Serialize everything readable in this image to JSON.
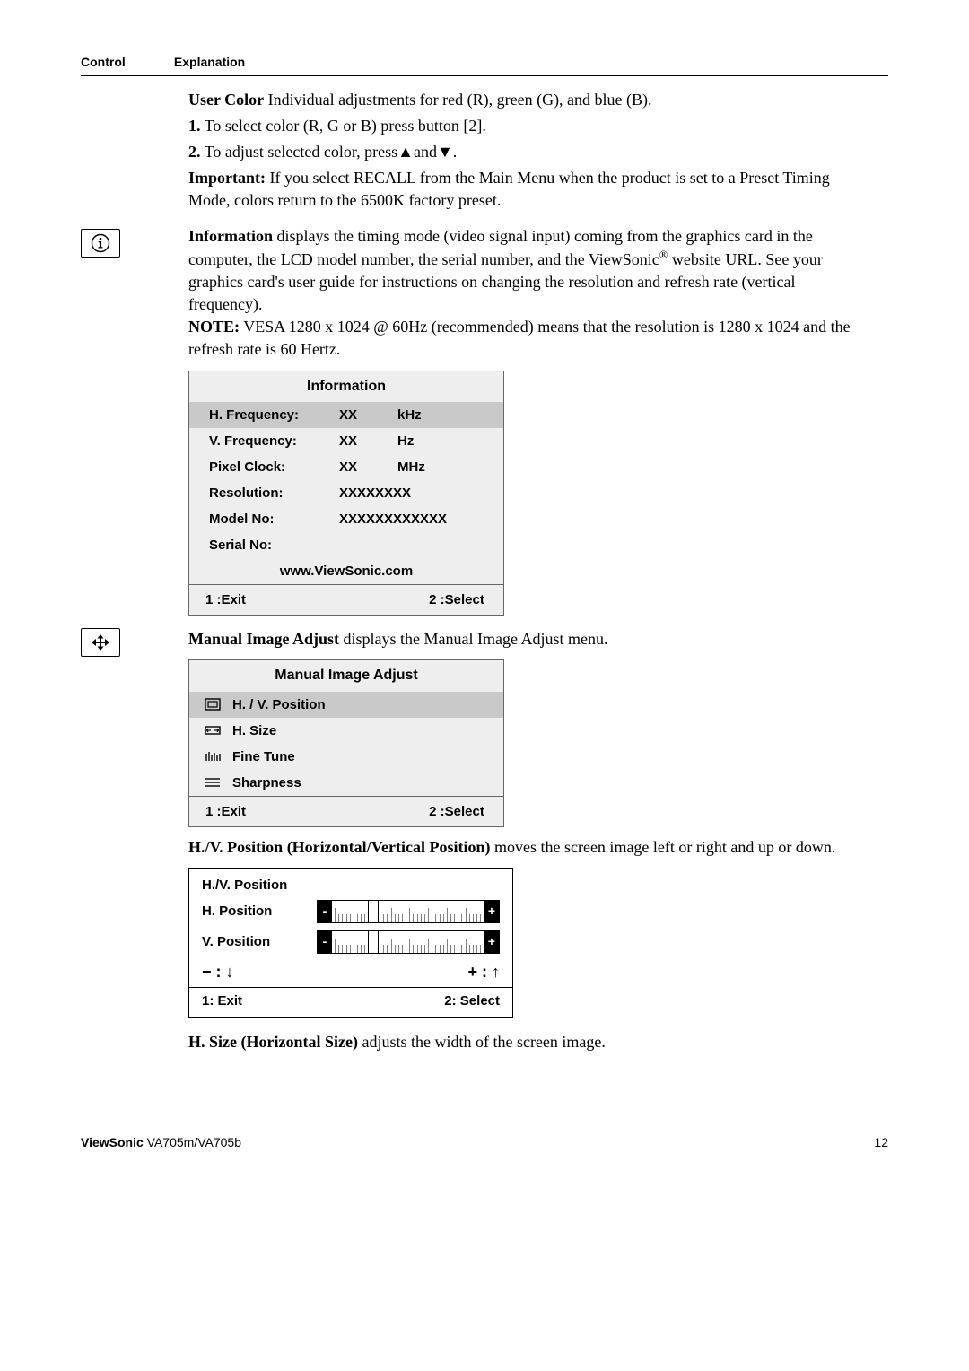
{
  "header": {
    "col1": "Control",
    "col2": "Explanation"
  },
  "userColor": {
    "title": "User Color",
    "desc": "  Individual adjustments for red (R), green (G),  and blue (B).",
    "step1_num": "1.",
    "step1": "  To select color (R, G or B) press button [2].",
    "step2_num": "2.",
    "step2a": "  To adjust selected color, press",
    "step2b": "and",
    "step2c": ".",
    "impLabel": "Important:",
    "impText": " If you select RECALL from the Main Menu when the product is set to a Preset Timing Mode, colors return to the 6500K factory preset."
  },
  "info": {
    "title": "Information",
    "desc": " displays the timing mode (video signal input) coming from the graphics card in the computer, the LCD model number, the serial number, and the ViewSonic",
    "desc2": " website URL. See your graphics card's user guide for instructions on changing the resolution and refresh rate (vertical frequency).",
    "noteLabel": "NOTE:",
    "noteText": " VESA 1280 x 1024 @ 60Hz (recommended) means that the resolution is 1280 x 1024 and the refresh rate is 60 Hertz.",
    "osd": {
      "title": "Information",
      "rows": [
        {
          "l": "H. Frequency:",
          "c": "XX",
          "r": "kHz",
          "hl": true
        },
        {
          "l": "V. Frequency:",
          "c": "XX",
          "r": "Hz",
          "hl": false
        },
        {
          "l": "Pixel Clock:",
          "c": "XX",
          "r": "MHz",
          "hl": false
        },
        {
          "l": "Resolution:",
          "c": "XXXXXXXX",
          "r": "",
          "hl": false
        },
        {
          "l": "Model No:",
          "c": "XXXXXXXXXXXX",
          "r": "",
          "hl": false
        },
        {
          "l": "Serial No:",
          "c": "",
          "r": "",
          "hl": false
        }
      ],
      "url": "www.ViewSonic.com",
      "exit": "1 :Exit",
      "select": "2 :Select"
    }
  },
  "mia": {
    "title": "Manual Image Adjust",
    "desc": " displays the Manual Image Adjust menu.",
    "osd": {
      "title": "Manual Image Adjust",
      "items": [
        {
          "label": "H. / V. Position",
          "hl": true
        },
        {
          "label": "H. Size",
          "hl": false
        },
        {
          "label": "Fine Tune",
          "hl": false
        },
        {
          "label": "Sharpness",
          "hl": false
        }
      ],
      "exit": "1 :Exit",
      "select": "2 :Select"
    }
  },
  "hv": {
    "title": "H./V. Position (Horizontal/Vertical Position)",
    "desc": " moves the screen image left or right and up or down.",
    "osd": {
      "title": "H./V. Position",
      "h": "H. Position",
      "v": "V. Position",
      "exit": "1: Exit",
      "select": "2: Select"
    }
  },
  "hsize": {
    "title": "H. Size (Horizontal Size)",
    "desc": " adjusts the width of the screen image."
  },
  "footer": {
    "brand": "ViewSonic",
    "model": "   VA705m/VA705b",
    "page": "12"
  }
}
